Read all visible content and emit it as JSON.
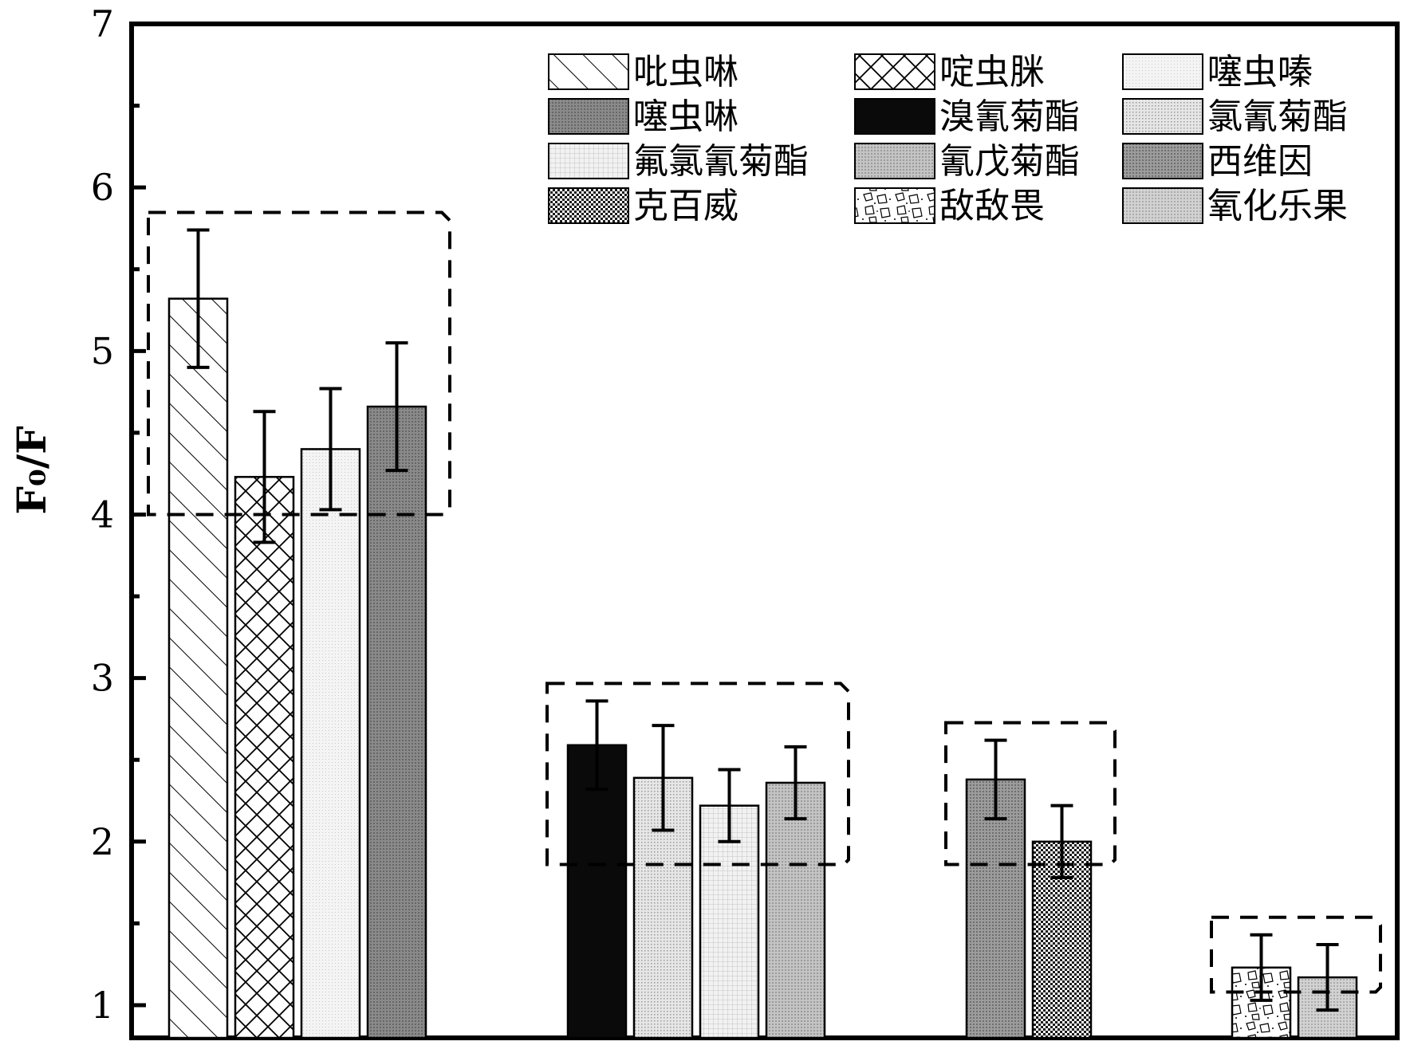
{
  "chart_data": {
    "type": "bar",
    "ylabel": "F₀/F",
    "ylim": [
      0.8,
      7
    ],
    "yticks": [
      1,
      2,
      3,
      4,
      5,
      6,
      7
    ],
    "legend": {
      "position": "top-right",
      "columns": 3
    },
    "series": [
      {
        "name": "吡虫啉",
        "value": 5.32,
        "error": 0.42,
        "pattern": "diag-hatch"
      },
      {
        "name": "啶虫脒",
        "value": 4.23,
        "error": 0.4,
        "pattern": "cross-hatch"
      },
      {
        "name": "噻虫嗪",
        "value": 4.4,
        "error": 0.37,
        "pattern": "light-grid"
      },
      {
        "name": "噻虫啉",
        "value": 4.66,
        "error": 0.39,
        "pattern": "dark-dots"
      },
      {
        "name": "溴氰菊酯",
        "value": 2.59,
        "error": 0.27,
        "pattern": "solid-black"
      },
      {
        "name": "氯氰菊酯",
        "value": 2.39,
        "error": 0.32,
        "pattern": "fine-dots"
      },
      {
        "name": "氟氯氰菊酯",
        "value": 2.22,
        "error": 0.22,
        "pattern": "fine-grid"
      },
      {
        "name": "氰戊菊酯",
        "value": 2.36,
        "error": 0.22,
        "pattern": "medium-dots"
      },
      {
        "name": "西维因",
        "value": 2.38,
        "error": 0.24,
        "pattern": "dark-dots-2"
      },
      {
        "name": "克百威",
        "value": 2.0,
        "error": 0.22,
        "pattern": "check"
      },
      {
        "name": "敌敌畏",
        "value": 1.23,
        "error": 0.2,
        "pattern": "stones"
      },
      {
        "name": "氧化乐果",
        "value": 1.17,
        "error": 0.2,
        "pattern": "light-dots"
      }
    ],
    "groups": [
      {
        "members": [
          0,
          1,
          2,
          3
        ],
        "threshold": 4.0
      },
      {
        "members": [
          4,
          5,
          6,
          7
        ],
        "threshold": 1.86
      },
      {
        "members": [
          8,
          9
        ],
        "threshold": 1.86
      },
      {
        "members": [
          10,
          11
        ],
        "threshold": 1.08
      }
    ]
  }
}
